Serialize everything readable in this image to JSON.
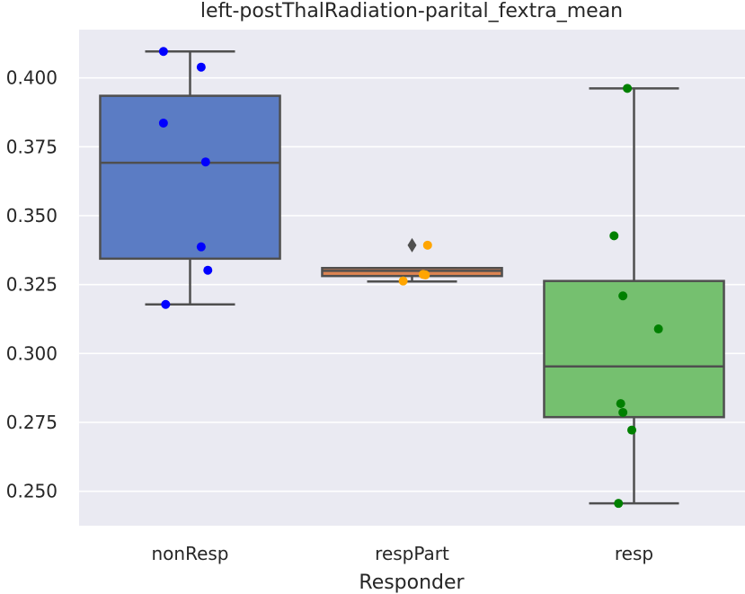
{
  "chart_data": {
    "type": "box",
    "title": "left-postThalRadiation-parital_fextra_mean",
    "xlabel": "Responder",
    "ylabel": "",
    "ylim": [
      0.2375,
      0.4175
    ],
    "yticks": [
      0.25,
      0.275,
      0.3,
      0.325,
      0.35,
      0.375,
      0.4
    ],
    "ytick_labels": [
      "0.250",
      "0.275",
      "0.300",
      "0.325",
      "0.350",
      "0.375",
      "0.400"
    ],
    "categories": [
      "nonResp",
      "respPart",
      "resp"
    ],
    "grid": true,
    "boxes": [
      {
        "category": "nonResp",
        "color": "#5b7cc4",
        "point_color": "#0000ff",
        "whisker_low": 0.3178,
        "q1": 0.3344,
        "median": 0.3692,
        "q3": 0.3935,
        "whisker_high": 0.4096,
        "outliers": [],
        "points": [
          {
            "dx": -0.12,
            "y": 0.4096
          },
          {
            "dx": 0.05,
            "y": 0.4039
          },
          {
            "dx": -0.12,
            "y": 0.3836
          },
          {
            "dx": 0.07,
            "y": 0.3695
          },
          {
            "dx": 0.05,
            "y": 0.3387
          },
          {
            "dx": 0.08,
            "y": 0.3302
          },
          {
            "dx": -0.11,
            "y": 0.3178
          }
        ]
      },
      {
        "category": "respPart",
        "color": "#dd8452",
        "point_color": "#ffa500",
        "whisker_low": 0.3261,
        "q1": 0.3281,
        "median": 0.33,
        "q3": 0.331,
        "whisker_high": 0.331,
        "outliers": [
          0.3393
        ],
        "points": [
          {
            "dx": 0.07,
            "y": 0.3393
          },
          {
            "dx": 0.05,
            "y": 0.3287
          },
          {
            "dx": 0.06,
            "y": 0.3285
          },
          {
            "dx": -0.04,
            "y": 0.3263
          }
        ]
      },
      {
        "category": "resp",
        "color": "#75c06f",
        "point_color": "#008000",
        "whisker_low": 0.2456,
        "q1": 0.2769,
        "median": 0.2953,
        "q3": 0.3263,
        "whisker_high": 0.3962,
        "outliers": [],
        "points": [
          {
            "dx": -0.03,
            "y": 0.3962
          },
          {
            "dx": -0.09,
            "y": 0.3427
          },
          {
            "dx": -0.05,
            "y": 0.3209
          },
          {
            "dx": 0.11,
            "y": 0.3089
          },
          {
            "dx": -0.06,
            "y": 0.2818
          },
          {
            "dx": -0.05,
            "y": 0.2786
          },
          {
            "dx": -0.01,
            "y": 0.2722
          },
          {
            "dx": -0.07,
            "y": 0.2456
          }
        ]
      }
    ]
  }
}
